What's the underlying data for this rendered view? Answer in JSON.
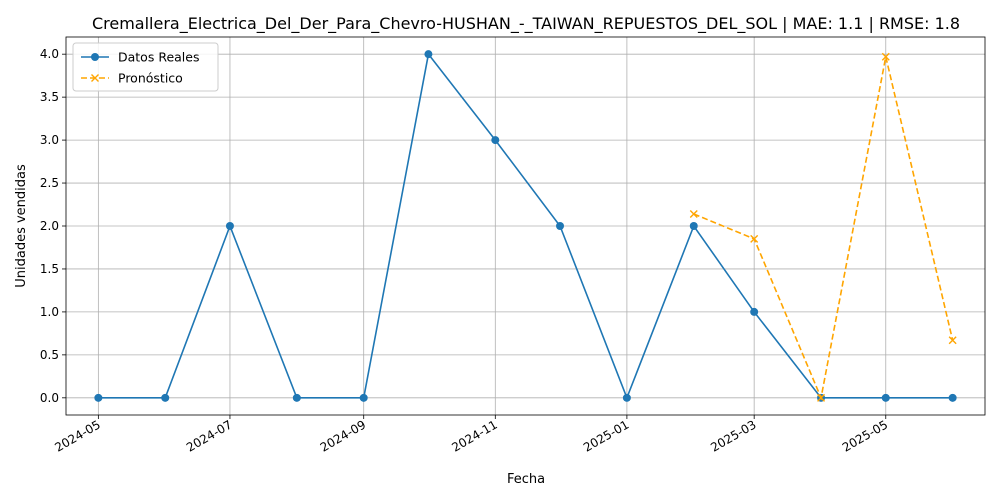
{
  "chart_data": {
    "type": "line",
    "title": "Cremallera_Electrica_Del_Der_Para_Chevro-HUSHAN_-_TAIWAN_REPUESTOS_DEL_SOL | MAE: 1.1 | RMSE: 1.8",
    "xlabel": "Fecha",
    "ylabel": "Unidades vendidas",
    "x_ticks": [
      "2024-05",
      "2024-07",
      "2024-09",
      "2024-11",
      "2025-01",
      "2025-03",
      "2025-05"
    ],
    "y_ticks": [
      "0.0",
      "0.5",
      "1.0",
      "1.5",
      "2.0",
      "2.5",
      "3.0",
      "3.5",
      "4.0"
    ],
    "ylim": [
      -0.2,
      4.2
    ],
    "xlim": [
      "2024-04-16",
      "2025-06-16"
    ],
    "grid": true,
    "legend_position": "top-left",
    "series": [
      {
        "name": "Datos Reales",
        "color": "#1f77b4",
        "marker": "circle",
        "line_style": "solid",
        "points": [
          {
            "x": "2024-05-01",
            "y": 0
          },
          {
            "x": "2024-06-01",
            "y": 0
          },
          {
            "x": "2024-07-01",
            "y": 2
          },
          {
            "x": "2024-08-01",
            "y": 0
          },
          {
            "x": "2024-09-01",
            "y": 0
          },
          {
            "x": "2024-10-01",
            "y": 4
          },
          {
            "x": "2024-11-01",
            "y": 3
          },
          {
            "x": "2024-12-01",
            "y": 2
          },
          {
            "x": "2025-01-01",
            "y": 0
          },
          {
            "x": "2025-02-01",
            "y": 2
          },
          {
            "x": "2025-03-01",
            "y": 1
          },
          {
            "x": "2025-04-01",
            "y": 0
          },
          {
            "x": "2025-05-01",
            "y": 0
          },
          {
            "x": "2025-06-01",
            "y": 0
          }
        ]
      },
      {
        "name": "Pronóstico",
        "color": "#ffa500",
        "marker": "x",
        "line_style": "dashed",
        "points": [
          {
            "x": "2025-02-01",
            "y": 2.14
          },
          {
            "x": "2025-03-01",
            "y": 1.85
          },
          {
            "x": "2025-04-01",
            "y": 0.0
          },
          {
            "x": "2025-05-01",
            "y": 3.97
          },
          {
            "x": "2025-06-01",
            "y": 0.67
          }
        ]
      }
    ]
  }
}
